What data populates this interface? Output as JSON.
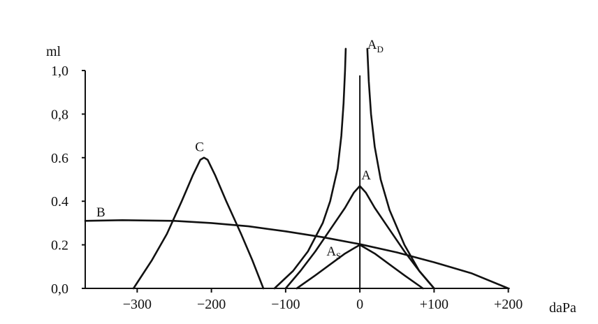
{
  "chart_data": {
    "type": "line",
    "title": "",
    "xlabel": "daPa",
    "ylabel": "ml",
    "xlim": [
      -370,
      200
    ],
    "ylim": [
      0,
      1.0
    ],
    "grid": false,
    "x_ticks": [
      {
        "value": -300,
        "label": "−300"
      },
      {
        "value": -200,
        "label": "−200"
      },
      {
        "value": -100,
        "label": "−100"
      },
      {
        "value": 0,
        "label": "0"
      },
      {
        "value": 100,
        "label": "+100"
      },
      {
        "value": 200,
        "label": "+200"
      }
    ],
    "y_ticks": [
      {
        "value": 0.0,
        "label": "0,0"
      },
      {
        "value": 0.2,
        "label": "0.2"
      },
      {
        "value": 0.4,
        "label": "0.4"
      },
      {
        "value": 0.6,
        "label": "0.6"
      },
      {
        "value": 0.8,
        "label": "0,8"
      },
      {
        "value": 1.0,
        "label": "1,0"
      }
    ],
    "series": [
      {
        "name": "A",
        "label_main": "A",
        "label_sub": "",
        "label_at": {
          "x": 2,
          "y": 0.5
        },
        "points": [
          [
            -100,
            0.0
          ],
          [
            -80,
            0.08
          ],
          [
            -60,
            0.17
          ],
          [
            -40,
            0.27
          ],
          [
            -20,
            0.37
          ],
          [
            -8,
            0.44
          ],
          [
            0,
            0.47
          ],
          [
            8,
            0.44
          ],
          [
            20,
            0.37
          ],
          [
            40,
            0.27
          ],
          [
            60,
            0.17
          ],
          [
            80,
            0.08
          ],
          [
            100,
            0.0
          ]
        ]
      },
      {
        "name": "AS",
        "label_main": "A",
        "label_sub": "S",
        "label_at": {
          "x": -45,
          "y": 0.15
        },
        "points": [
          [
            -85,
            0.0
          ],
          [
            -60,
            0.06
          ],
          [
            -40,
            0.11
          ],
          [
            -20,
            0.16
          ],
          [
            -5,
            0.19
          ],
          [
            0,
            0.2
          ],
          [
            5,
            0.19
          ],
          [
            20,
            0.16
          ],
          [
            40,
            0.11
          ],
          [
            60,
            0.06
          ],
          [
            85,
            0.0
          ]
        ]
      },
      {
        "name": "AD-left",
        "label_main": "A",
        "label_sub": "D",
        "label_at": {
          "x": 10,
          "y": 1.1
        },
        "points": [
          [
            -115,
            0.0
          ],
          [
            -90,
            0.08
          ],
          [
            -70,
            0.17
          ],
          [
            -50,
            0.3
          ],
          [
            -40,
            0.4
          ],
          [
            -30,
            0.55
          ],
          [
            -25,
            0.7
          ],
          [
            -22,
            0.85
          ],
          [
            -20,
            1.0
          ],
          [
            -19,
            1.1
          ]
        ]
      },
      {
        "name": "AD-right",
        "label_main": "",
        "label_sub": "",
        "points": [
          [
            10,
            1.1
          ],
          [
            12,
            0.95
          ],
          [
            15,
            0.8
          ],
          [
            20,
            0.65
          ],
          [
            28,
            0.5
          ],
          [
            40,
            0.36
          ],
          [
            60,
            0.2
          ],
          [
            80,
            0.08
          ],
          [
            100,
            0.0
          ]
        ]
      },
      {
        "name": "B",
        "label_main": "B",
        "label_sub": "",
        "label_at": {
          "x": -355,
          "y": 0.33
        },
        "points": [
          [
            -370,
            0.31
          ],
          [
            -320,
            0.313
          ],
          [
            -250,
            0.31
          ],
          [
            -200,
            0.3
          ],
          [
            -150,
            0.285
          ],
          [
            -100,
            0.262
          ],
          [
            -50,
            0.235
          ],
          [
            0,
            0.203
          ],
          [
            50,
            0.165
          ],
          [
            100,
            0.12
          ],
          [
            150,
            0.07
          ],
          [
            200,
            0.0
          ]
        ]
      },
      {
        "name": "C",
        "label_main": "C",
        "label_sub": "",
        "label_at": {
          "x": -222,
          "y": 0.63
        },
        "points": [
          [
            -305,
            0.0
          ],
          [
            -280,
            0.13
          ],
          [
            -260,
            0.25
          ],
          [
            -240,
            0.4
          ],
          [
            -225,
            0.52
          ],
          [
            -215,
            0.59
          ],
          [
            -210,
            0.6
          ],
          [
            -205,
            0.59
          ],
          [
            -195,
            0.52
          ],
          [
            -180,
            0.4
          ],
          [
            -160,
            0.25
          ],
          [
            -145,
            0.13
          ],
          [
            -130,
            0.0
          ]
        ]
      }
    ]
  }
}
